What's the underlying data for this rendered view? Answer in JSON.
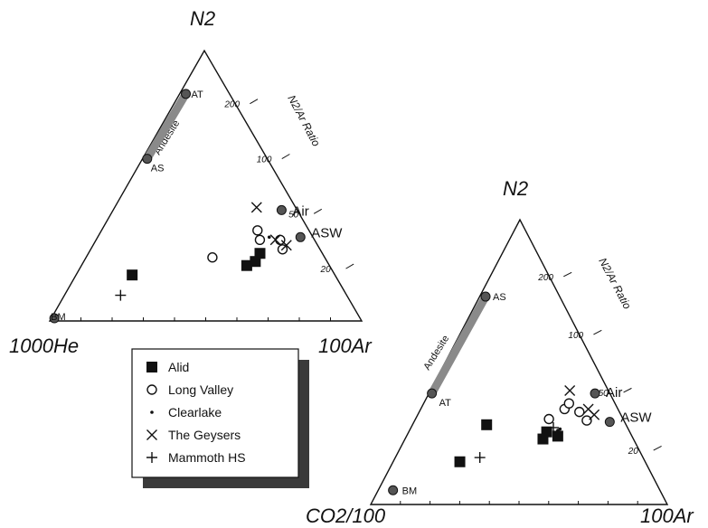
{
  "chart_data": [
    {
      "type": "scatter",
      "subtype": "ternary",
      "corners": {
        "top": "N2",
        "left": "1000He",
        "right": "100Ar"
      },
      "ratio_scale": {
        "title": "N2/Ar Ratio",
        "ticks": [
          "200",
          "100",
          "50",
          "20"
        ]
      },
      "reference_points": [
        {
          "label": "AT",
          "n2": 0.84,
          "left": 0.14,
          "right": 0.02
        },
        {
          "label": "AS",
          "n2": 0.6,
          "left": 0.385,
          "right": 0.015
        },
        {
          "label": "Air",
          "n2": 0.41,
          "left": 0.05,
          "right": 0.54
        },
        {
          "label": "ASW",
          "n2": 0.31,
          "left": 0.04,
          "right": 0.65
        },
        {
          "label": "BM",
          "n2": 0.01,
          "left": 0.98,
          "right": 0.01
        }
      ],
      "andesite_label": "Andesite",
      "series": [
        {
          "name": "Alid",
          "marker": "square",
          "points": [
            {
              "n2": 0.17,
              "left": 0.65,
              "right": 0.18
            },
            {
              "n2": 0.205,
              "left": 0.265,
              "right": 0.53
            },
            {
              "n2": 0.22,
              "left": 0.23,
              "right": 0.55
            },
            {
              "n2": 0.25,
              "left": 0.2,
              "right": 0.55
            }
          ]
        },
        {
          "name": "Long Valley",
          "marker": "circle",
          "points": [
            {
              "n2": 0.235,
              "left": 0.36,
              "right": 0.405
            },
            {
              "n2": 0.335,
              "left": 0.165,
              "right": 0.5
            },
            {
              "n2": 0.3,
              "left": 0.175,
              "right": 0.525
            },
            {
              "n2": 0.3,
              "left": 0.11,
              "right": 0.59
            },
            {
              "n2": 0.265,
              "left": 0.12,
              "right": 0.615
            }
          ]
        },
        {
          "name": "Clearlake",
          "marker": "dot",
          "points": [
            {
              "n2": 0.31,
              "left": 0.14,
              "right": 0.55
            }
          ]
        },
        {
          "name": "The Geysers",
          "marker": "x",
          "points": [
            {
              "n2": 0.42,
              "left": 0.125,
              "right": 0.455
            },
            {
              "n2": 0.3,
              "left": 0.125,
              "right": 0.575
            },
            {
              "n2": 0.28,
              "left": 0.1,
              "right": 0.62
            }
          ]
        },
        {
          "name": "Mammoth HS",
          "marker": "plus",
          "points": [
            {
              "n2": 0.095,
              "left": 0.725,
              "right": 0.18
            }
          ]
        }
      ]
    },
    {
      "type": "scatter",
      "subtype": "ternary",
      "corners": {
        "top": "N2",
        "left": "CO2/100",
        "right": "100Ar"
      },
      "ratio_scale": {
        "title": "N2/Ar Ratio",
        "ticks": [
          "200",
          "100",
          "50",
          "20"
        ]
      },
      "reference_points": [
        {
          "label": "AS",
          "n2": 0.73,
          "left": 0.25,
          "right": 0.02
        },
        {
          "label": "Air",
          "n2": 0.39,
          "left": 0.05,
          "right": 0.56
        },
        {
          "label": "AT",
          "n2": 0.39,
          "left": 0.6,
          "right": 0.01
        },
        {
          "label": "ASW",
          "n2": 0.29,
          "left": 0.05,
          "right": 0.66
        },
        {
          "label": "BM",
          "n2": 0.05,
          "left": 0.9,
          "right": 0.05
        }
      ],
      "andesite_label": "Andesite",
      "series": [
        {
          "name": "Alid",
          "marker": "square",
          "points": [
            {
              "n2": 0.28,
              "left": 0.47,
              "right": 0.25
            },
            {
              "n2": 0.15,
              "left": 0.625,
              "right": 0.225
            },
            {
              "n2": 0.23,
              "left": 0.305,
              "right": 0.465
            },
            {
              "n2": 0.255,
              "left": 0.28,
              "right": 0.465
            },
            {
              "n2": 0.24,
              "left": 0.25,
              "right": 0.51
            }
          ]
        },
        {
          "name": "Long Valley",
          "marker": "circle",
          "points": [
            {
              "n2": 0.3,
              "left": 0.25,
              "right": 0.45
            },
            {
              "n2": 0.335,
              "left": 0.18,
              "right": 0.485
            },
            {
              "n2": 0.355,
              "left": 0.155,
              "right": 0.49
            },
            {
              "n2": 0.325,
              "left": 0.135,
              "right": 0.54
            },
            {
              "n2": 0.295,
              "left": 0.125,
              "right": 0.58
            }
          ]
        },
        {
          "name": "Clearlake",
          "marker": "dot",
          "points": [
            {
              "n2": 0.26,
              "left": 0.24,
              "right": 0.5
            },
            {
              "n2": 0.265,
              "left": 0.23,
              "right": 0.505
            }
          ]
        },
        {
          "name": "The Geysers",
          "marker": "x",
          "points": [
            {
              "n2": 0.4,
              "left": 0.13,
              "right": 0.47
            },
            {
              "n2": 0.335,
              "left": 0.1,
              "right": 0.565
            },
            {
              "n2": 0.315,
              "left": 0.09,
              "right": 0.595
            }
          ]
        },
        {
          "name": "Mammoth HS",
          "marker": "plus",
          "points": [
            {
              "n2": 0.27,
              "left": 0.25,
              "right": 0.48
            },
            {
              "n2": 0.165,
              "left": 0.55,
              "right": 0.285
            }
          ]
        }
      ]
    }
  ],
  "legend": {
    "items": [
      {
        "label": "Alid",
        "marker": "square"
      },
      {
        "label": "Long Valley",
        "marker": "circle"
      },
      {
        "label": "Clearlake",
        "marker": "dot"
      },
      {
        "label": "The Geysers",
        "marker": "x"
      },
      {
        "label": "Mammoth HS",
        "marker": "plus"
      }
    ]
  }
}
